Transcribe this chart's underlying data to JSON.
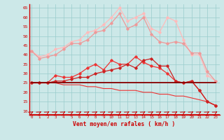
{
  "x": [
    0,
    1,
    2,
    3,
    4,
    5,
    6,
    7,
    8,
    9,
    10,
    11,
    12,
    13,
    14,
    15,
    16,
    17,
    18,
    19,
    20,
    21,
    22,
    23
  ],
  "line_flat": [
    25,
    25,
    25,
    25,
    25,
    25,
    25,
    25,
    25,
    25,
    25,
    25,
    25,
    25,
    25,
    25,
    25,
    25,
    25,
    25,
    25,
    25,
    25,
    25
  ],
  "line_lower_red": [
    25,
    25,
    25,
    25,
    24,
    24,
    24,
    23,
    23,
    22,
    22,
    21,
    21,
    21,
    20,
    20,
    19,
    19,
    18,
    18,
    17,
    16,
    15,
    13
  ],
  "line_mid_dark": [
    25,
    25,
    25,
    26,
    26,
    27,
    28,
    28,
    30,
    31,
    32,
    33,
    35,
    33,
    37,
    38,
    34,
    34,
    26,
    25,
    26,
    21,
    15,
    13
  ],
  "line_mid_bright": [
    25,
    25,
    25,
    29,
    28,
    28,
    30,
    33,
    35,
    32,
    37,
    35,
    35,
    39,
    36,
    34,
    33,
    30,
    26,
    25,
    26,
    21,
    15,
    13
  ],
  "line_light1": [
    42,
    38,
    39,
    40,
    43,
    46,
    46,
    48,
    52,
    53,
    57,
    62,
    54,
    56,
    60,
    51,
    47,
    46,
    47,
    46,
    41,
    41,
    31,
    26
  ],
  "line_light2": [
    42,
    39,
    40,
    43,
    44,
    47,
    48,
    52,
    53,
    56,
    60,
    65,
    58,
    60,
    62,
    54,
    52,
    60,
    58,
    48,
    40,
    40,
    29,
    26
  ],
  "bg_color": "#cce8e8",
  "grid_color": "#99cccc",
  "dark_red": "#880000",
  "mid_red": "#cc2222",
  "bright_red": "#ee3333",
  "light_pink1": "#ee9999",
  "light_pink2": "#ffbbbb",
  "xlabel": "Vent moyen/en rafales ( km/h )",
  "ylabel_ticks": [
    10,
    15,
    20,
    25,
    30,
    35,
    40,
    45,
    50,
    55,
    60,
    65
  ],
  "ylim": [
    8,
    67
  ],
  "xlim": [
    -0.3,
    23.5
  ]
}
